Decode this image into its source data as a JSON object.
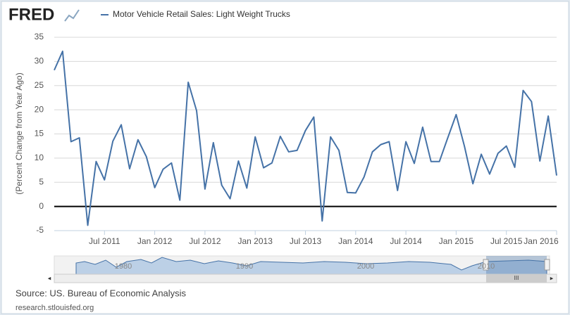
{
  "chart_data": {
    "type": "line",
    "brand": "FRED",
    "ylabel": "(Percent Change from Year Ago)",
    "source": "Source: US. Bureau of Economic Analysis",
    "footer": "research.stlouisfed.org",
    "x": [
      "2011-01",
      "2011-02",
      "2011-03",
      "2011-04",
      "2011-05",
      "2011-06",
      "2011-07",
      "2011-08",
      "2011-09",
      "2011-10",
      "2011-11",
      "2011-12",
      "2012-01",
      "2012-02",
      "2012-03",
      "2012-04",
      "2012-05",
      "2012-06",
      "2012-07",
      "2012-08",
      "2012-09",
      "2012-10",
      "2012-11",
      "2012-12",
      "2013-01",
      "2013-02",
      "2013-03",
      "2013-04",
      "2013-05",
      "2013-06",
      "2013-07",
      "2013-08",
      "2013-09",
      "2013-10",
      "2013-11",
      "2013-12",
      "2014-01",
      "2014-02",
      "2014-03",
      "2014-04",
      "2014-05",
      "2014-06",
      "2014-07",
      "2014-08",
      "2014-09",
      "2014-10",
      "2014-11",
      "2014-12",
      "2015-01",
      "2015-02",
      "2015-03",
      "2015-04",
      "2015-05",
      "2015-06",
      "2015-07",
      "2015-08",
      "2015-09",
      "2015-10",
      "2015-11",
      "2015-12",
      "2016-01"
    ],
    "series": [
      {
        "name": "Motor Vehicle Retail Sales: Light Weight Trucks",
        "color": "#4572a7",
        "values": [
          28.2,
          32.1,
          13.4,
          14.2,
          -3.9,
          9.3,
          5.5,
          13.5,
          16.9,
          7.8,
          13.8,
          10.3,
          3.9,
          7.7,
          9.0,
          1.3,
          25.7,
          19.8,
          3.6,
          13.2,
          4.4,
          1.6,
          9.4,
          3.8,
          14.4,
          8.0,
          9.0,
          14.5,
          11.3,
          11.6,
          15.7,
          18.5,
          -3.0,
          14.4,
          11.6,
          2.9,
          2.8,
          6.1,
          11.3,
          12.8,
          13.4,
          3.3,
          13.4,
          8.9,
          16.4,
          9.3,
          9.3,
          14.2,
          19.0,
          12.4,
          4.7,
          10.8,
          6.7,
          11.0,
          12.5,
          8.1,
          24.0,
          21.7,
          9.4,
          18.7,
          6.4
        ]
      }
    ],
    "xlim": [
      "2011-01",
      "2016-01"
    ],
    "xticks": [
      {
        "value": "2011-07",
        "label": "Jul 2011"
      },
      {
        "value": "2012-01",
        "label": "Jan 2012"
      },
      {
        "value": "2012-07",
        "label": "Jul 2012"
      },
      {
        "value": "2013-01",
        "label": "Jan 2013"
      },
      {
        "value": "2013-07",
        "label": "Jul 2013"
      },
      {
        "value": "2014-01",
        "label": "Jan 2014"
      },
      {
        "value": "2014-07",
        "label": "Jul 2014"
      },
      {
        "value": "2015-01",
        "label": "Jan 2015"
      },
      {
        "value": "2015-07",
        "label": "Jul 2015"
      },
      {
        "value": "2016-01",
        "label": "Jan 2016"
      }
    ],
    "ylim": [
      -5,
      35
    ],
    "yticks": [
      -5,
      0,
      5,
      10,
      15,
      20,
      25,
      30,
      35
    ],
    "grid": true,
    "zero_line": true
  },
  "navigator": {
    "labels": [
      "1980",
      "1990",
      "2000",
      "2010"
    ],
    "scroll_label": "III"
  }
}
